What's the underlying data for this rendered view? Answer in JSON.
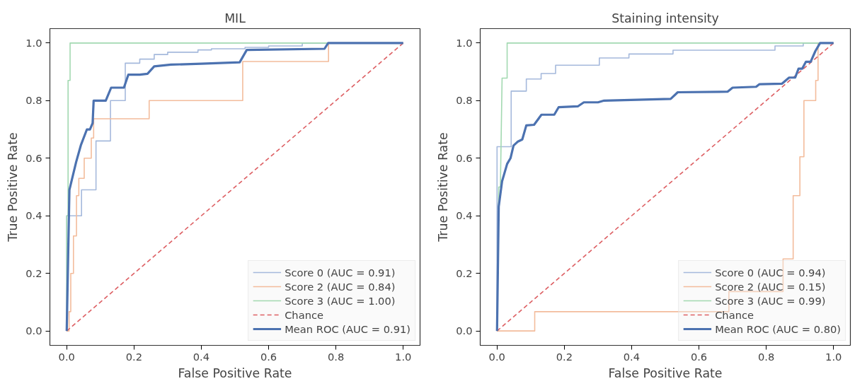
{
  "chart_data": [
    {
      "type": "line",
      "title": "MIL",
      "xlabel": "False Positive Rate",
      "ylabel": "True Positive Rate",
      "xlim": [
        -0.05,
        1.05
      ],
      "ylim": [
        -0.05,
        1.05
      ],
      "xticks": [
        {
          "value": 0,
          "label": "0.0"
        },
        {
          "value": 0.2,
          "label": "0.2"
        },
        {
          "value": 0.4,
          "label": "0.4"
        },
        {
          "value": 0.6,
          "label": "0.6"
        },
        {
          "value": 0.8,
          "label": "0.8"
        },
        {
          "value": 1,
          "label": "1.0"
        }
      ],
      "yticks": [
        {
          "value": 0,
          "label": "0.0"
        },
        {
          "value": 0.2,
          "label": "0.2"
        },
        {
          "value": 0.4,
          "label": "0.4"
        },
        {
          "value": 0.6,
          "label": "0.6"
        },
        {
          "value": 0.8,
          "label": "0.8"
        },
        {
          "value": 1,
          "label": "1.0"
        }
      ],
      "grid": false,
      "legend": "bottom right",
      "marker": "none",
      "series": [
        {
          "name": "Score 0 (AUC = 0.91)",
          "color": "#a5b9dc",
          "line_style": "solid",
          "x": [
            0,
            0,
            0.044,
            0.044,
            0.087,
            0.087,
            0.13,
            0.13,
            0.174,
            0.174,
            0.217,
            0.217,
            0.26,
            0.26,
            0.3,
            0.3,
            0.39,
            0.39,
            0.43,
            0.43,
            0.53,
            0.53,
            0.6,
            0.6,
            0.7,
            0.7,
            1
          ],
          "values": [
            0,
            0.4,
            0.4,
            0.49,
            0.49,
            0.66,
            0.66,
            0.8,
            0.8,
            0.93,
            0.93,
            0.944,
            0.944,
            0.96,
            0.96,
            0.968,
            0.968,
            0.976,
            0.976,
            0.98,
            0.98,
            0.985,
            0.985,
            0.99,
            0.99,
            1,
            1
          ]
        },
        {
          "name": "Score 2 (AUC = 0.84)",
          "color": "#f3bc9c",
          "line_style": "solid",
          "x": [
            0,
            0.007,
            0.007,
            0.012,
            0.012,
            0.02,
            0.02,
            0.029,
            0.029,
            0.036,
            0.036,
            0.052,
            0.052,
            0.073,
            0.073,
            0.08,
            0.08,
            0.245,
            0.245,
            0.523,
            0.523,
            0.778,
            0.778,
            1
          ],
          "values": [
            0,
            0,
            0.067,
            0.067,
            0.2,
            0.2,
            0.33,
            0.33,
            0.47,
            0.47,
            0.53,
            0.53,
            0.6,
            0.6,
            0.67,
            0.67,
            0.737,
            0.737,
            0.8,
            0.8,
            0.936,
            0.936,
            1,
            1
          ]
        },
        {
          "name": "Score 3 (AUC = 1.00)",
          "color": "#a3d9b1",
          "line_style": "solid",
          "x": [
            0,
            0,
            0.004,
            0.004,
            0.01,
            0.01,
            1
          ],
          "values": [
            0,
            0.4,
            0.4,
            0.87,
            0.87,
            1,
            1
          ]
        },
        {
          "name": "Chance",
          "color": "#dd5f63",
          "line_style": "dashed",
          "x": [
            0,
            1
          ],
          "values": [
            0,
            1
          ]
        },
        {
          "name": "Mean ROC (AUC = 0.91)",
          "color": "#4c72b0",
          "line_style": "solid",
          "x": [
            0,
            0.008,
            0.028,
            0.042,
            0.06,
            0.069,
            0.077,
            0.08,
            0.116,
            0.132,
            0.17,
            0.183,
            0.217,
            0.24,
            0.26,
            0.31,
            0.4,
            0.514,
            0.535,
            0.766,
            0.777,
            1
          ],
          "values": [
            0,
            0.49,
            0.587,
            0.645,
            0.7,
            0.7,
            0.722,
            0.8,
            0.8,
            0.845,
            0.845,
            0.89,
            0.89,
            0.893,
            0.919,
            0.925,
            0.928,
            0.933,
            0.976,
            0.98,
            1,
            1
          ]
        }
      ]
    },
    {
      "type": "line",
      "title": "Staining intensity",
      "xlabel": "False Positive Rate",
      "ylabel": "True Positive Rate",
      "xlim": [
        -0.05,
        1.05
      ],
      "ylim": [
        -0.05,
        1.05
      ],
      "xticks": [
        {
          "value": 0,
          "label": "0.0"
        },
        {
          "value": 0.2,
          "label": "0.2"
        },
        {
          "value": 0.4,
          "label": "0.4"
        },
        {
          "value": 0.6,
          "label": "0.6"
        },
        {
          "value": 0.8,
          "label": "0.8"
        },
        {
          "value": 1,
          "label": "1.0"
        }
      ],
      "yticks": [
        {
          "value": 0,
          "label": "0.0"
        },
        {
          "value": 0.2,
          "label": "0.2"
        },
        {
          "value": 0.4,
          "label": "0.4"
        },
        {
          "value": 0.6,
          "label": "0.6"
        },
        {
          "value": 0.8,
          "label": "0.8"
        },
        {
          "value": 1,
          "label": "1.0"
        }
      ],
      "grid": false,
      "legend": "bottom right",
      "marker": "none",
      "series": [
        {
          "name": "Score 0 (AUC = 0.94)",
          "color": "#a5b9dc",
          "line_style": "solid",
          "x": [
            0,
            0,
            0.042,
            0.042,
            0.087,
            0.087,
            0.131,
            0.131,
            0.174,
            0.174,
            0.304,
            0.304,
            0.392,
            0.392,
            0.523,
            0.523,
            0.826,
            0.826,
            0.91,
            0.91,
            1
          ],
          "values": [
            0,
            0.64,
            0.64,
            0.833,
            0.833,
            0.875,
            0.875,
            0.894,
            0.894,
            0.923,
            0.923,
            0.948,
            0.948,
            0.962,
            0.962,
            0.975,
            0.975,
            0.99,
            0.99,
            1,
            1
          ]
        },
        {
          "name": "Score 2 (AUC = 0.15)",
          "color": "#f3bc9c",
          "line_style": "solid",
          "x": [
            0,
            0.112,
            0.112,
            0.689,
            0.689,
            0.85,
            0.85,
            0.88,
            0.88,
            0.9,
            0.9,
            0.912,
            0.912,
            0.947,
            0.947,
            0.954,
            0.954,
            1
          ],
          "values": [
            0,
            0,
            0.067,
            0.067,
            0.137,
            0.137,
            0.25,
            0.25,
            0.47,
            0.47,
            0.605,
            0.605,
            0.8,
            0.8,
            0.87,
            0.87,
            1,
            1
          ]
        },
        {
          "name": "Score 3 (AUC = 0.99)",
          "color": "#a3d9b1",
          "line_style": "solid",
          "x": [
            0,
            0.005,
            0.01,
            0.015,
            0.03,
            0.03,
            1
          ],
          "values": [
            0,
            0.5,
            0.5,
            0.878,
            0.878,
            1,
            1
          ]
        },
        {
          "name": "Chance",
          "color": "#dd5f63",
          "line_style": "dashed",
          "x": [
            0,
            1
          ],
          "values": [
            0,
            1
          ]
        },
        {
          "name": "Mean ROC (AUC = 0.80)",
          "color": "#4c72b0",
          "line_style": "solid",
          "x": [
            0,
            0.005,
            0.015,
            0.03,
            0.04,
            0.049,
            0.061,
            0.075,
            0.087,
            0.11,
            0.132,
            0.17,
            0.183,
            0.24,
            0.258,
            0.3,
            0.318,
            0.516,
            0.537,
            0.685,
            0.7,
            0.77,
            0.78,
            0.847,
            0.868,
            0.886,
            0.896,
            0.907,
            0.918,
            0.932,
            0.946,
            0.96,
            1
          ],
          "values": [
            0,
            0.432,
            0.52,
            0.58,
            0.6,
            0.644,
            0.657,
            0.665,
            0.714,
            0.716,
            0.751,
            0.751,
            0.777,
            0.78,
            0.794,
            0.794,
            0.8,
            0.806,
            0.829,
            0.831,
            0.845,
            0.848,
            0.857,
            0.859,
            0.88,
            0.88,
            0.911,
            0.911,
            0.935,
            0.935,
            0.972,
            1,
            1
          ]
        }
      ]
    }
  ]
}
